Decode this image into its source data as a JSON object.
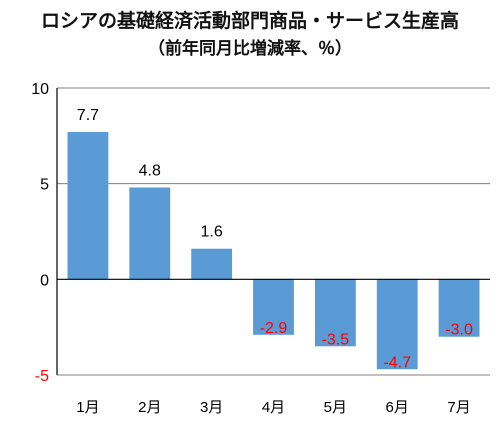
{
  "chart_data": {
    "type": "bar",
    "title": "ロシアの基礎経済活動部門商品・サービス生産高",
    "subtitle": "（前年同月比増減率、％）",
    "categories": [
      "1月",
      "2月",
      "3月",
      "4月",
      "5月",
      "6月",
      "7月"
    ],
    "values": [
      7.7,
      4.8,
      1.6,
      -2.9,
      -3.5,
      -4.7,
      -3.0
    ],
    "data_labels": [
      "7.7",
      "4.8",
      "1.6",
      "-2.9",
      "-3.5",
      "-4.7",
      "-3.0"
    ],
    "yticks": [
      "10",
      "5",
      "0",
      "-5"
    ],
    "ylim": [
      -5,
      10
    ],
    "grid": true,
    "colors": {
      "bar": "#5B9BD5",
      "positive_label": "#000000",
      "negative_label": "#FF0000",
      "negative_tick": "#FF0000",
      "axis": "#000000",
      "grid": "#808080"
    }
  }
}
